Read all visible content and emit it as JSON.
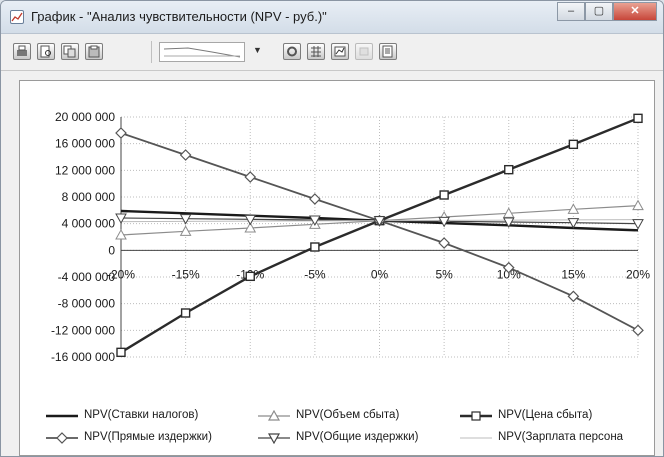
{
  "window": {
    "title": "График - \"Анализ чувствительности (NPV - руб.)\"",
    "controls": {
      "minimize": "–",
      "maximize": "▢",
      "close": "✕"
    }
  },
  "toolbar": {
    "buttons": [
      "print-icon",
      "print-preview-icon",
      "copy-icon",
      "paste-icon"
    ],
    "chart_type_combo": "line-chart-sample",
    "right_buttons": [
      "settings-icon",
      "grid-icon",
      "chart-properties-icon",
      "disabled-icon",
      "export-icon"
    ]
  },
  "chart_data": {
    "type": "line",
    "title": "",
    "xlabel": "",
    "ylabel": "",
    "x": [
      "-20%",
      "-15%",
      "-10%",
      "-5%",
      "0%",
      "5%",
      "10%",
      "15%",
      "20%"
    ],
    "x_values": [
      -20,
      -15,
      -10,
      -5,
      0,
      5,
      10,
      15,
      20
    ],
    "ylim": [
      -16000000,
      20000000
    ],
    "y_ticks": [
      20000000,
      16000000,
      12000000,
      8000000,
      4000000,
      0,
      -4000000,
      -8000000,
      -12000000,
      -16000000
    ],
    "y_tick_labels": [
      "20 000 000",
      "16 000 000",
      "12 000 000",
      "8 000 000",
      "4 000 000",
      "0",
      "-4 000 000",
      "-8 000 000",
      "-12 000 000",
      "-16 000 000"
    ],
    "grid": true,
    "legend_position": "bottom",
    "series": [
      {
        "name": "NPV(Ставки налогов)",
        "color": "#1a1a1a",
        "marker": "none",
        "width": 2.4,
        "values": [
          5900000,
          5550000,
          5200000,
          4850000,
          4450000,
          4100000,
          3750000,
          3350000,
          3000000
        ]
      },
      {
        "name": "NPV(Объем сбыта)",
        "color": "#8c8c8c",
        "marker": "triangle",
        "width": 1.2,
        "values": [
          2300000,
          2850000,
          3350000,
          3900000,
          4450000,
          5000000,
          5550000,
          6150000,
          6700000
        ]
      },
      {
        "name": "NPV(Цена сбыта)",
        "color": "#2b2b2b",
        "marker": "square",
        "width": 2.4,
        "values": [
          -15300000,
          -9400000,
          -3900000,
          500000,
          4450000,
          8300000,
          12100000,
          15900000,
          19800000
        ]
      },
      {
        "name": "NPV(Прямые издержки)",
        "color": "#555555",
        "marker": "diamond",
        "width": 1.8,
        "values": [
          17600000,
          14300000,
          11000000,
          7700000,
          4450000,
          1100000,
          -2600000,
          -6900000,
          -12000000
        ]
      },
      {
        "name": "NPV(Общие издержки)",
        "color": "#444444",
        "marker": "inverted-triangle",
        "width": 1.2,
        "values": [
          4850000,
          4750000,
          4650000,
          4550000,
          4450000,
          4350000,
          4250000,
          4150000,
          4000000
        ]
      },
      {
        "name": "NPV(Зарплата персона",
        "color": "#bdbdbd",
        "marker": "none",
        "width": 1,
        "values": [
          4300000,
          4340000,
          4380000,
          4420000,
          4450000,
          4490000,
          4530000,
          4570000,
          4600000
        ]
      }
    ]
  }
}
